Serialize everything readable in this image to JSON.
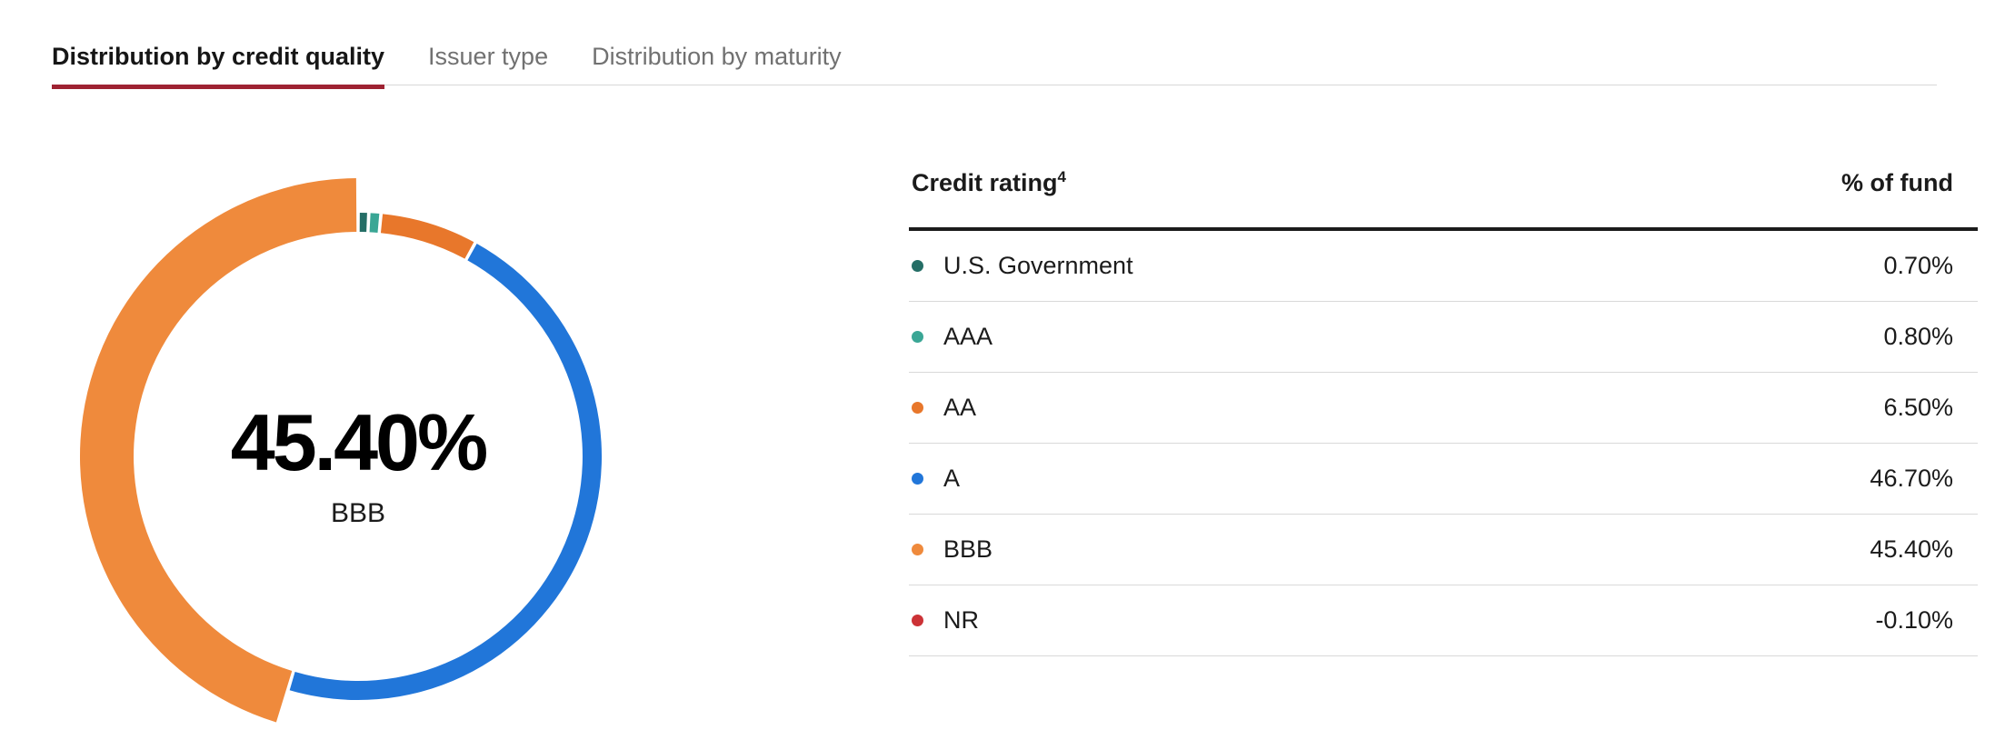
{
  "tabs": [
    {
      "label": "Distribution by credit quality",
      "active": true
    },
    {
      "label": "Issuer type",
      "active": false
    },
    {
      "label": "Distribution by maturity",
      "active": false
    }
  ],
  "colors": {
    "active_tab_underline": "#9e2232",
    "active_tab_text": "#161616",
    "inactive_tab_text": "#717171",
    "hairline": "#d9d9d9",
    "header_rule": "#1b1b1b"
  },
  "chart_data": {
    "type": "pie",
    "subtype": "donut",
    "categories": [
      "U.S. Government",
      "AAA",
      "AA",
      "A",
      "BBB",
      "NR"
    ],
    "values": [
      0.7,
      0.8,
      6.5,
      46.7,
      45.4,
      -0.1
    ],
    "colors": [
      "#256e66",
      "#3aa695",
      "#e8772b",
      "#2176d9",
      "#ef8a3c",
      "#cc3236"
    ],
    "highlighted": "BBB",
    "center_label": {
      "value": "45.40%",
      "label": "BBB"
    },
    "start_angle_deg": 0,
    "direction": "clockwise",
    "legend_position": "table-right"
  },
  "table": {
    "header": {
      "rating": "Credit rating",
      "superscript": "4",
      "pct": "% of fund"
    },
    "rows": [
      {
        "label": "U.S. Government",
        "value": "0.70%",
        "color": "#256e66"
      },
      {
        "label": "AAA",
        "value": "0.80%",
        "color": "#3aa695"
      },
      {
        "label": "AA",
        "value": "6.50%",
        "color": "#e8772b"
      },
      {
        "label": "A",
        "value": "46.70%",
        "color": "#2176d9"
      },
      {
        "label": "BBB",
        "value": "45.40%",
        "color": "#ef8a3c"
      },
      {
        "label": "NR",
        "value": "-0.10%",
        "color": "#cc3236"
      }
    ]
  }
}
